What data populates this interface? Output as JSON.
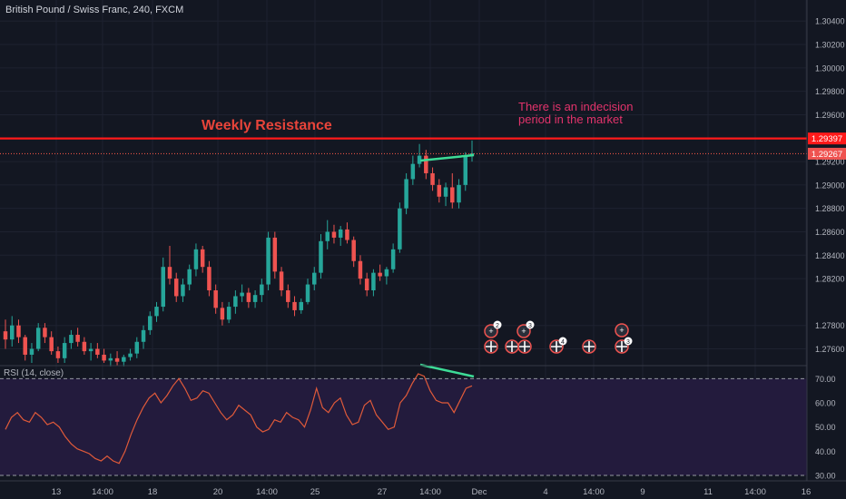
{
  "header": {
    "symbol_title": "British Pound / Swiss Franc, 240, FXCM"
  },
  "price_axis": {
    "ticks": [
      "1.30400",
      "1.30200",
      "1.30000",
      "1.29800",
      "1.29600",
      "1.29200",
      "1.29000",
      "1.28800",
      "1.28600",
      "1.28400",
      "1.28200",
      "1.27800",
      "1.27600"
    ],
    "tick_values": [
      1.304,
      1.302,
      1.3,
      1.298,
      1.296,
      1.292,
      1.29,
      1.288,
      1.286,
      1.284,
      1.282,
      1.278,
      1.276
    ],
    "range": [
      1.2748,
      1.3058
    ]
  },
  "time_axis": {
    "labels": [
      "13",
      "14:00",
      "18",
      "20",
      "14:00",
      "25",
      "27",
      "14:00",
      "Dec",
      "4",
      "14:00",
      "9",
      "11",
      "14:00",
      "16"
    ]
  },
  "annotations": {
    "resistance_label": "Weekly Resistance",
    "indecision_line1": "There is an indecision",
    "indecision_line2": "period in the market",
    "resistance_price": "1.29397",
    "last_price": "1.29267"
  },
  "colors": {
    "background": "#131722",
    "bull": "#26a69a",
    "bear": "#ef5350",
    "resistance": "#ff1a1a",
    "annotation_text": "#e2336b",
    "trendline": "#3ddc97",
    "rsi_line": "#e05a3a",
    "rsi_fill": "#2a1f4a"
  },
  "rsi": {
    "label": "RSI (14, close)",
    "ticks": [
      "70.00",
      "60.00",
      "50.00",
      "40.00",
      "30.00"
    ],
    "tick_values": [
      70,
      60,
      50,
      40,
      30
    ],
    "range": [
      28.5,
      75
    ],
    "upper_band": 70,
    "lower_band": 30
  },
  "event_badges": {
    "counts": [
      "2",
      "3",
      "4",
      "3"
    ]
  },
  "chart_data": [
    {
      "type": "candlestick",
      "title": "British Pound / Swiss Franc, 240, FXCM",
      "ylim": [
        1.2748,
        1.3058
      ],
      "resistance_level": 1.29397,
      "last_price": 1.29267,
      "candles": [
        [
          1.2775,
          1.2785,
          1.276,
          1.2768
        ],
        [
          1.2768,
          1.2788,
          1.2762,
          1.278
        ],
        [
          1.278,
          1.2785,
          1.2765,
          1.277
        ],
        [
          1.277,
          1.2772,
          1.275,
          1.2755
        ],
        [
          1.2755,
          1.2765,
          1.2748,
          1.276
        ],
        [
          1.276,
          1.2782,
          1.2758,
          1.2778
        ],
        [
          1.2778,
          1.2782,
          1.2765,
          1.277
        ],
        [
          1.277,
          1.2775,
          1.2755,
          1.2758
        ],
        [
          1.2758,
          1.2762,
          1.2748,
          1.2752
        ],
        [
          1.2752,
          1.277,
          1.2748,
          1.2765
        ],
        [
          1.2765,
          1.2776,
          1.276,
          1.2772
        ],
        [
          1.2772,
          1.2778,
          1.2762,
          1.2766
        ],
        [
          1.2766,
          1.277,
          1.2755,
          1.2758
        ],
        [
          1.2758,
          1.2765,
          1.275,
          1.276
        ],
        [
          1.276,
          1.2765,
          1.2752,
          1.2755
        ],
        [
          1.2755,
          1.276,
          1.2748,
          1.275
        ],
        [
          1.275,
          1.2756,
          1.2745,
          1.2752
        ],
        [
          1.2752,
          1.2758,
          1.2746,
          1.2749
        ],
        [
          1.2749,
          1.2755,
          1.2745,
          1.2753
        ],
        [
          1.2753,
          1.276,
          1.275,
          1.2756
        ],
        [
          1.2756,
          1.277,
          1.2752,
          1.2766
        ],
        [
          1.2766,
          1.278,
          1.276,
          1.2776
        ],
        [
          1.2776,
          1.2792,
          1.2772,
          1.2788
        ],
        [
          1.2788,
          1.28,
          1.2783,
          1.2796
        ],
        [
          1.2796,
          1.2838,
          1.2792,
          1.283
        ],
        [
          1.283,
          1.2848,
          1.2815,
          1.282
        ],
        [
          1.282,
          1.2825,
          1.28,
          1.2805
        ],
        [
          1.2805,
          1.282,
          1.28,
          1.2815
        ],
        [
          1.2815,
          1.2832,
          1.281,
          1.2828
        ],
        [
          1.2828,
          1.285,
          1.2822,
          1.2845
        ],
        [
          1.2845,
          1.2848,
          1.2825,
          1.283
        ],
        [
          1.283,
          1.2835,
          1.2805,
          1.281
        ],
        [
          1.281,
          1.2815,
          1.279,
          1.2795
        ],
        [
          1.2795,
          1.28,
          1.278,
          1.2785
        ],
        [
          1.2785,
          1.28,
          1.2782,
          1.2796
        ],
        [
          1.2796,
          1.281,
          1.279,
          1.2805
        ],
        [
          1.2805,
          1.2815,
          1.28,
          1.2808
        ],
        [
          1.2808,
          1.2812,
          1.2795,
          1.28
        ],
        [
          1.28,
          1.281,
          1.2795,
          1.2806
        ],
        [
          1.2806,
          1.282,
          1.28,
          1.2815
        ],
        [
          1.2815,
          1.286,
          1.281,
          1.2855
        ],
        [
          1.2855,
          1.286,
          1.282,
          1.2826
        ],
        [
          1.2826,
          1.283,
          1.2805,
          1.281
        ],
        [
          1.281,
          1.2815,
          1.2795,
          1.28
        ],
        [
          1.28,
          1.2805,
          1.2788,
          1.2793
        ],
        [
          1.2793,
          1.2803,
          1.279,
          1.28
        ],
        [
          1.28,
          1.282,
          1.2798,
          1.2815
        ],
        [
          1.2815,
          1.283,
          1.281,
          1.2825
        ],
        [
          1.2825,
          1.2858,
          1.282,
          1.2852
        ],
        [
          1.2852,
          1.287,
          1.2845,
          1.286
        ],
        [
          1.286,
          1.2866,
          1.285,
          1.2855
        ],
        [
          1.2855,
          1.2865,
          1.2848,
          1.2862
        ],
        [
          1.2862,
          1.2868,
          1.285,
          1.2853
        ],
        [
          1.2853,
          1.2856,
          1.283,
          1.2835
        ],
        [
          1.2835,
          1.284,
          1.2815,
          1.282
        ],
        [
          1.282,
          1.2825,
          1.2805,
          1.281
        ],
        [
          1.281,
          1.2828,
          1.2805,
          1.2825
        ],
        [
          1.2825,
          1.2832,
          1.2818,
          1.2822
        ],
        [
          1.2822,
          1.283,
          1.2815,
          1.2828
        ],
        [
          1.2828,
          1.285,
          1.2825,
          1.2845
        ],
        [
          1.2845,
          1.2885,
          1.2842,
          1.288
        ],
        [
          1.288,
          1.291,
          1.2875,
          1.2905
        ],
        [
          1.2905,
          1.2925,
          1.29,
          1.2918
        ],
        [
          1.2918,
          1.2935,
          1.2915,
          1.2925
        ],
        [
          1.2925,
          1.293,
          1.2905,
          1.291
        ],
        [
          1.291,
          1.2915,
          1.2895,
          1.29
        ],
        [
          1.29,
          1.2905,
          1.2885,
          1.289
        ],
        [
          1.289,
          1.2902,
          1.2882,
          1.2898
        ],
        [
          1.2898,
          1.291,
          1.288,
          1.2885
        ],
        [
          1.2885,
          1.2905,
          1.288,
          1.29
        ],
        [
          1.29,
          1.2928,
          1.2895,
          1.2925
        ],
        [
          1.2925,
          1.2938,
          1.292,
          1.2927
        ]
      ]
    },
    {
      "type": "line",
      "title": "RSI (14, close)",
      "ylim": [
        28.5,
        75
      ],
      "values": [
        49,
        54,
        56,
        53,
        52,
        56,
        54,
        51,
        52,
        50,
        46,
        43,
        41,
        40,
        39,
        37,
        36,
        38,
        36,
        35,
        40,
        47,
        53,
        58,
        62,
        64,
        60,
        63,
        67,
        70,
        66,
        61,
        62,
        65,
        64,
        60,
        56,
        53,
        55,
        59,
        57,
        55,
        50,
        48,
        49,
        53,
        52,
        56,
        54,
        53,
        50,
        57,
        66,
        58,
        56,
        60,
        62,
        55,
        51,
        52,
        59,
        61,
        55,
        52,
        49,
        50,
        60,
        63,
        68,
        72,
        71,
        65,
        61,
        60,
        60,
        56,
        61,
        66,
        67
      ]
    }
  ]
}
